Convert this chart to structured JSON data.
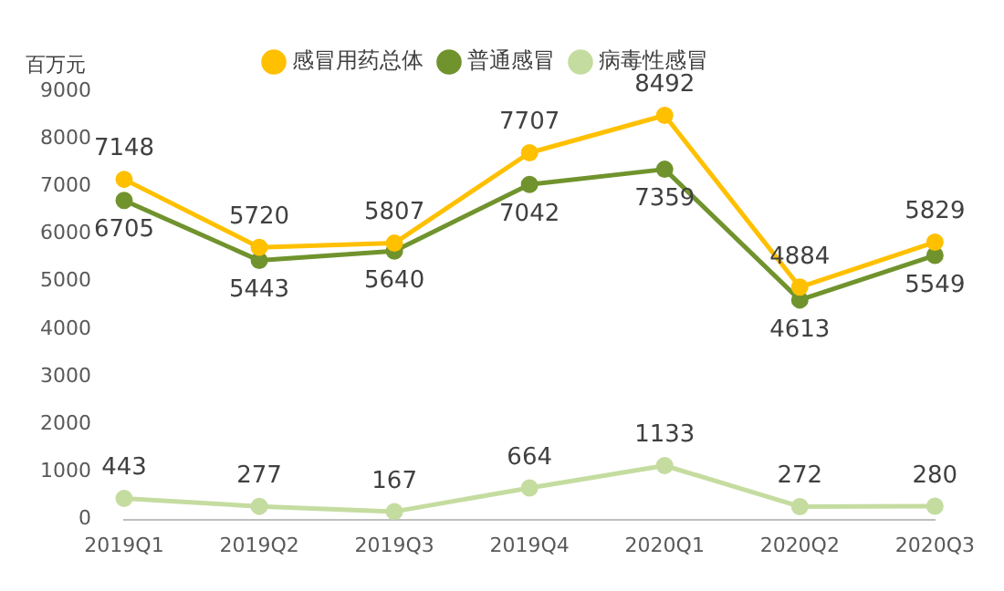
{
  "chart_data": {
    "type": "line",
    "ylabel": "百万元",
    "categories": [
      "2019Q1",
      "2019Q2",
      "2019Q3",
      "2019Q4",
      "2020Q1",
      "2020Q2",
      "2020Q3"
    ],
    "series": [
      {
        "name": "感冒用药总体",
        "color": "#ffc000",
        "values": [
          7148,
          5720,
          5807,
          7707,
          8492,
          4884,
          5829
        ]
      },
      {
        "name": "普通感冒",
        "color": "#70932d",
        "values": [
          6705,
          5443,
          5640,
          7042,
          7359,
          4613,
          5549
        ]
      },
      {
        "name": "病毒性感冒",
        "color": "#c5dca0",
        "values": [
          443,
          277,
          167,
          664,
          1133,
          272,
          280
        ]
      }
    ],
    "ylim": [
      0,
      9000
    ],
    "yticks": [
      0,
      1000,
      2000,
      3000,
      4000,
      5000,
      6000,
      7000,
      8000,
      9000
    ],
    "grid": false,
    "legend": "top",
    "marker": "circle",
    "line_style": "solid",
    "data_labels": true
  }
}
